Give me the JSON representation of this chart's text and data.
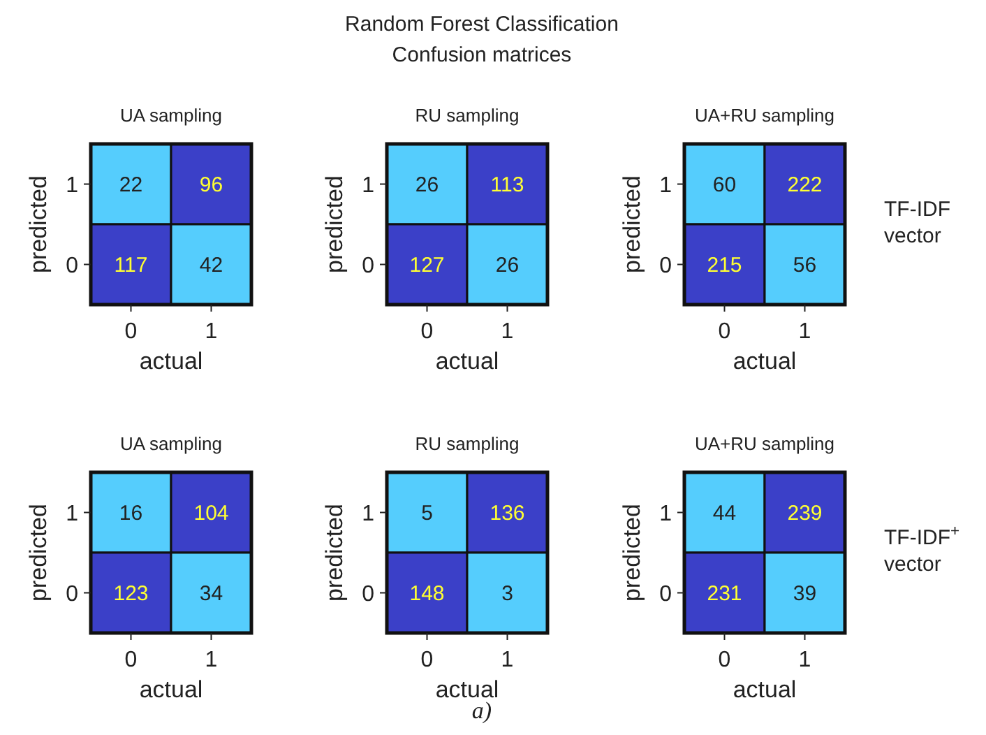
{
  "chart_data": [
    {
      "type": "heatmap",
      "title": "UA sampling",
      "xlabel": "actual",
      "ylabel": "predicted",
      "categories": [
        "0",
        "1"
      ],
      "y_categories": [
        "1",
        "0"
      ],
      "cells": [
        [
          22,
          96
        ],
        [
          117,
          42
        ]
      ],
      "data_labels": true,
      "colors": [
        "#55cdfd",
        "#3b40c8"
      ]
    },
    {
      "type": "heatmap",
      "title": "RU sampling",
      "xlabel": "actual",
      "ylabel": "predicted",
      "categories": [
        "0",
        "1"
      ],
      "y_categories": [
        "1",
        "0"
      ],
      "cells": [
        [
          26,
          113
        ],
        [
          127,
          26
        ]
      ],
      "data_labels": true,
      "colors": [
        "#55cdfd",
        "#3b40c8"
      ]
    },
    {
      "type": "heatmap",
      "title": "UA+RU sampling",
      "xlabel": "actual",
      "ylabel": "predicted",
      "y2label": "TF-IDF vector",
      "categories": [
        "0",
        "1"
      ],
      "y_categories": [
        "1",
        "0"
      ],
      "cells": [
        [
          60,
          222
        ],
        [
          215,
          56
        ]
      ],
      "data_labels": true,
      "colors": [
        "#55cdfd",
        "#3b40c8"
      ]
    },
    {
      "type": "heatmap",
      "title": "UA sampling",
      "xlabel": "actual",
      "ylabel": "predicted",
      "categories": [
        "0",
        "1"
      ],
      "y_categories": [
        "1",
        "0"
      ],
      "cells": [
        [
          16,
          104
        ],
        [
          123,
          34
        ]
      ],
      "data_labels": true,
      "colors": [
        "#55cdfd",
        "#3b40c8"
      ]
    },
    {
      "type": "heatmap",
      "title": "RU sampling",
      "xlabel": "actual",
      "ylabel": "predicted",
      "categories": [
        "0",
        "1"
      ],
      "y_categories": [
        "1",
        "0"
      ],
      "cells": [
        [
          5,
          136
        ],
        [
          148,
          3
        ]
      ],
      "data_labels": true,
      "colors": [
        "#55cdfd",
        "#3b40c8"
      ]
    },
    {
      "type": "heatmap",
      "title": "UA+RU sampling",
      "xlabel": "actual",
      "ylabel": "predicted",
      "y2label": "TF-IDF$^{+}$ vector",
      "categories": [
        "0",
        "1"
      ],
      "y_categories": [
        "1",
        "0"
      ],
      "cells": [
        [
          44,
          239
        ],
        [
          231,
          39
        ]
      ],
      "data_labels": true,
      "colors": [
        "#55cdfd",
        "#3b40c8"
      ]
    },
    {
      "type": "other",
      "title": "Random Forest Classification",
      "subtitle": "Confusion matrices",
      "annotations": [
        "a)"
      ]
    }
  ]
}
